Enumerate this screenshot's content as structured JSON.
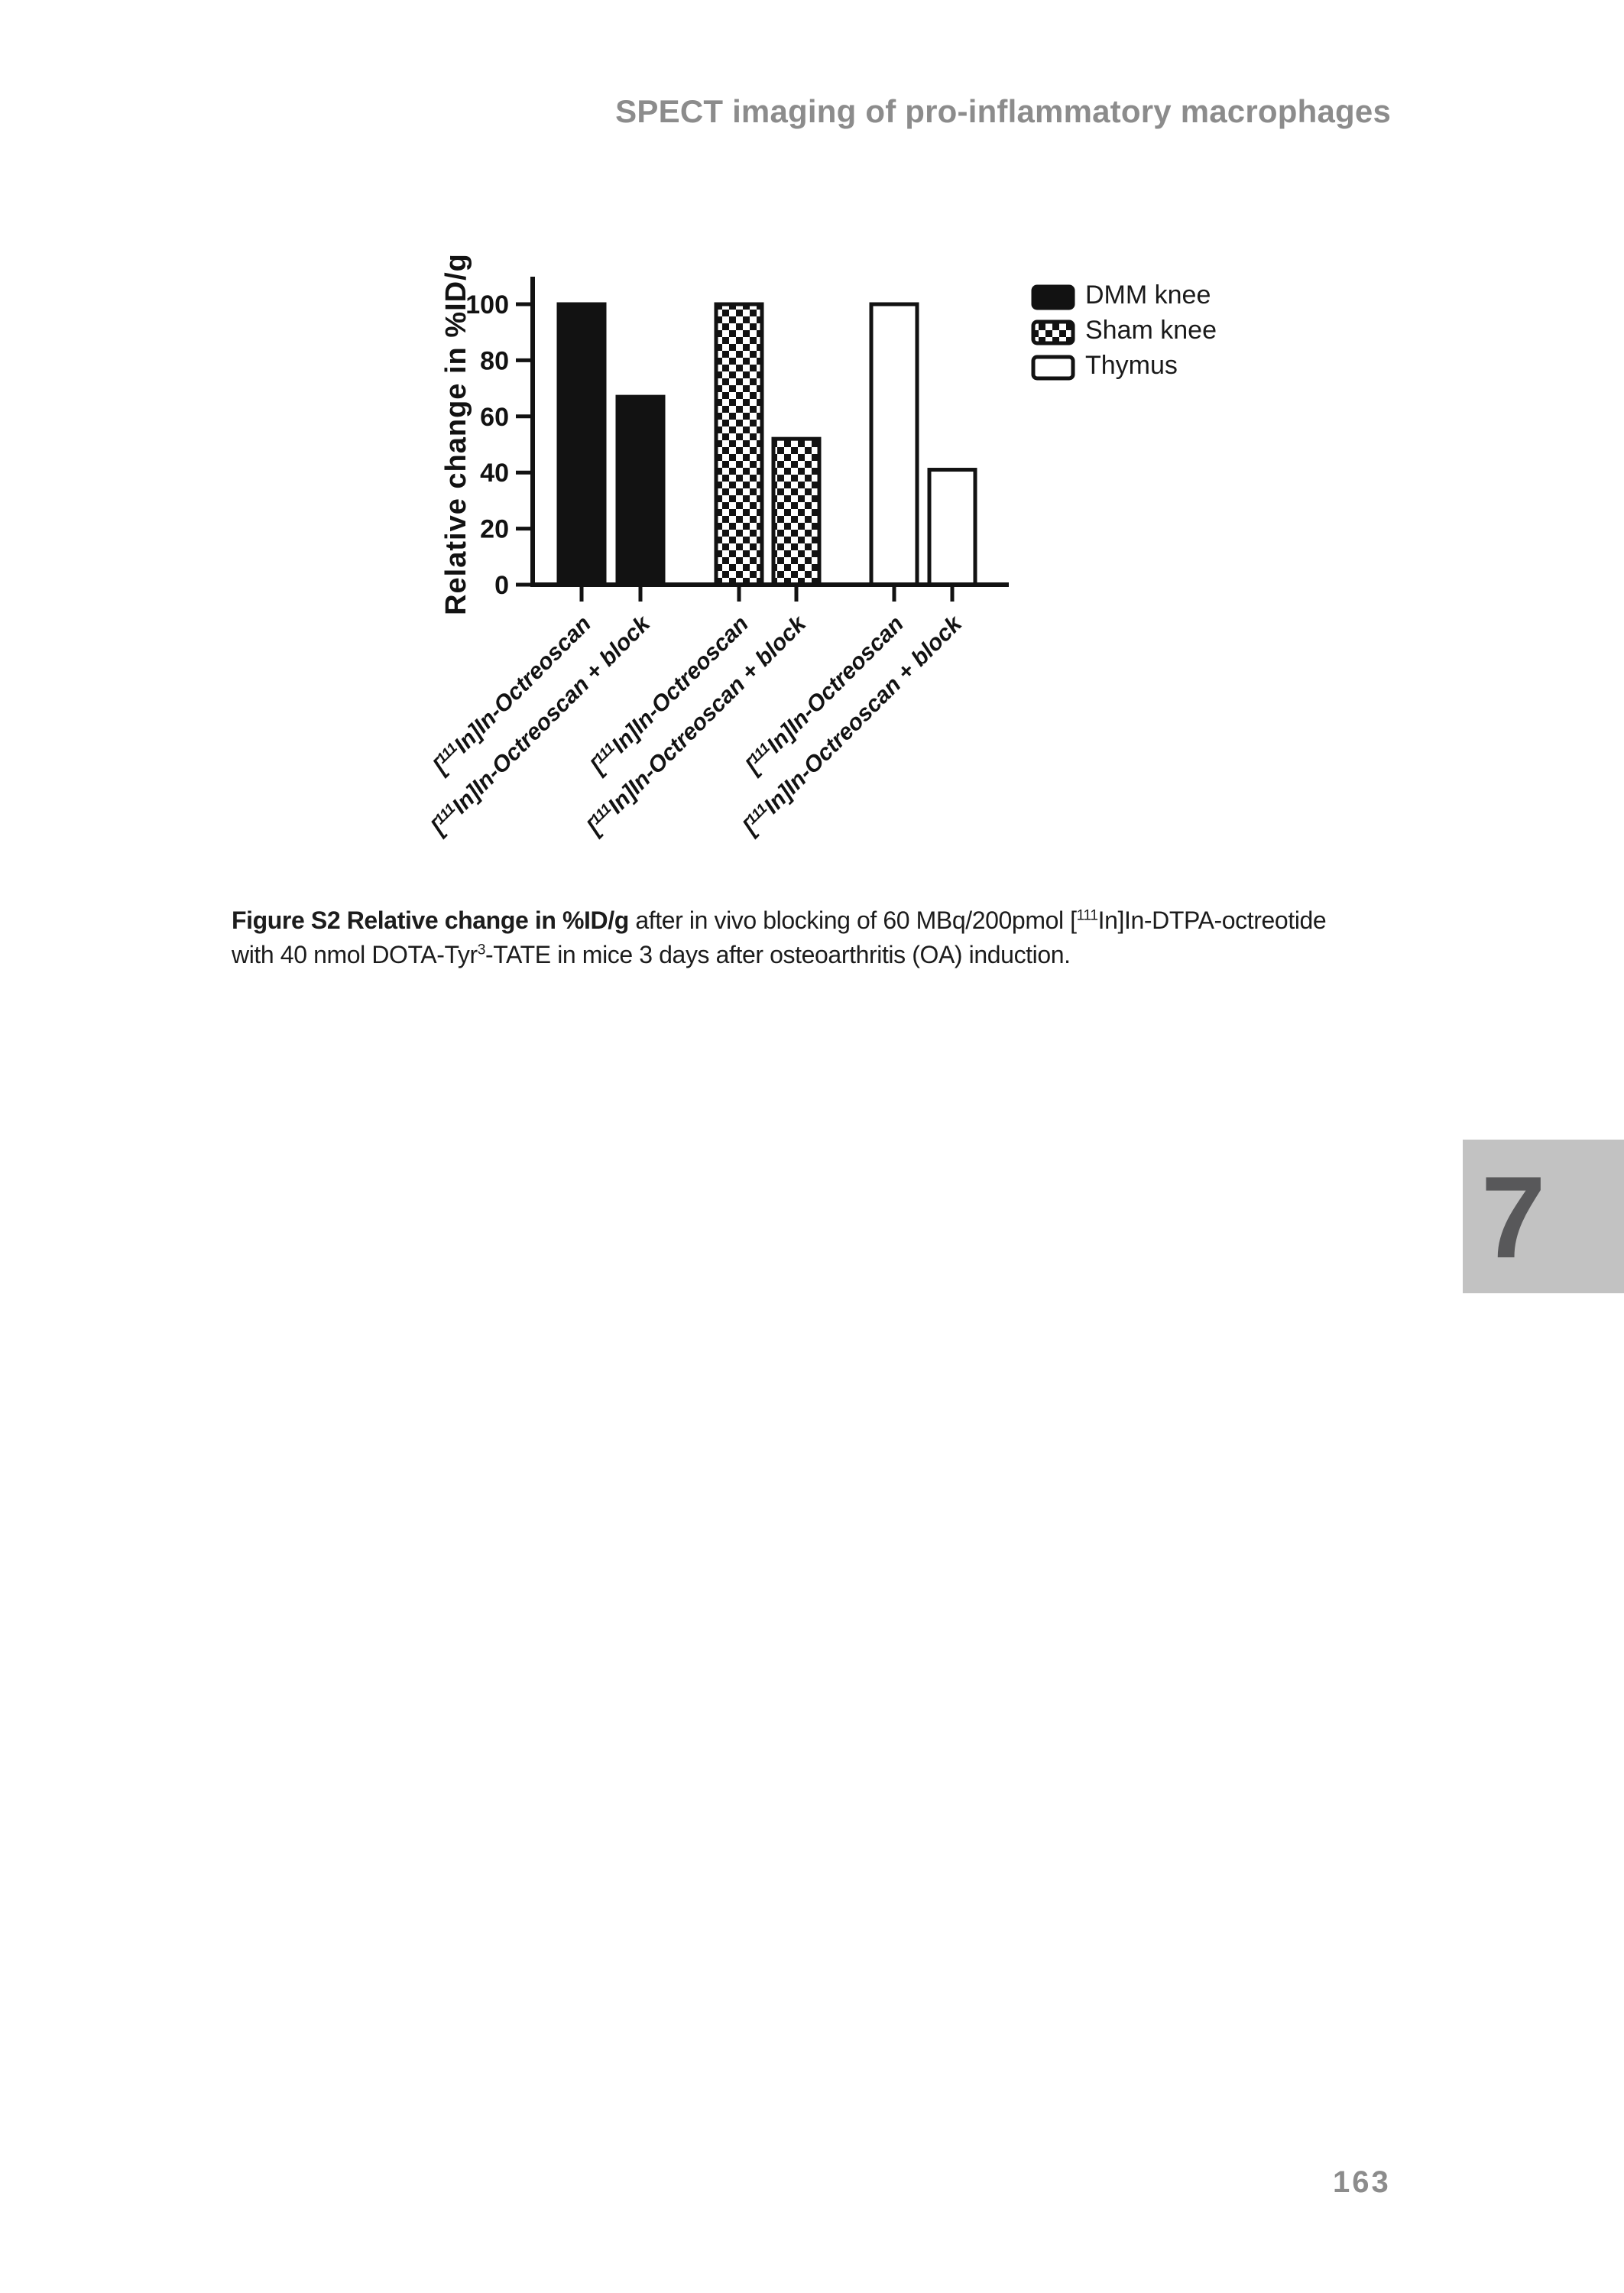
{
  "page": {
    "header_title": "SPECT imaging of pro-inflammatory macrophages",
    "chapter_number": "7",
    "page_number": "163"
  },
  "caption": {
    "bold": "Figure S2 Relative change in %ID/g",
    "seg1": " after in vivo blocking of 60 MBq/200pmol [",
    "sup1": "111",
    "seg2": "In]In-DTPA-octreotide",
    "seg3": "with 40 nmol DOTA-Tyr",
    "sup2": "3",
    "seg4": "-TATE in mice 3 days after osteoarthritis (OA) induction."
  },
  "chart_data": {
    "type": "bar",
    "title": "",
    "xlabel": "",
    "ylabel": "Relative change in %ID/g",
    "ylim": [
      0,
      110
    ],
    "yticks": [
      0,
      20,
      40,
      60,
      80,
      100
    ],
    "grid": false,
    "legend_position": "right-top",
    "categories_per_group": [
      "[111In]In-Octreoscan",
      "[111In]In-Octreoscan + block"
    ],
    "series": [
      {
        "name": "DMM knee",
        "pattern": "solid-black",
        "values": [
          100,
          67
        ]
      },
      {
        "name": "Sham knee",
        "pattern": "checkerboard",
        "values": [
          100,
          52
        ]
      },
      {
        "name": "Thymus",
        "pattern": "white-outline",
        "values": [
          100,
          41
        ]
      }
    ],
    "x_tick_labels": [
      {
        "pre": "[",
        "sup": "111",
        "rest": "In]In-Octreoscan"
      },
      {
        "pre": "[",
        "sup": "111",
        "rest": "In]In-Octreoscan + block"
      },
      {
        "pre": "[",
        "sup": "111",
        "rest": "In]In-Octreoscan"
      },
      {
        "pre": "[",
        "sup": "111",
        "rest": "In]In-Octreoscan + block"
      },
      {
        "pre": "[",
        "sup": "111",
        "rest": "In]In-Octreoscan"
      },
      {
        "pre": "[",
        "sup": "111",
        "rest": "In]In-Octreoscan + block"
      }
    ],
    "colors": {
      "bar_fill": "#121212",
      "bar_outline": "#121212",
      "axis": "#121212"
    }
  }
}
